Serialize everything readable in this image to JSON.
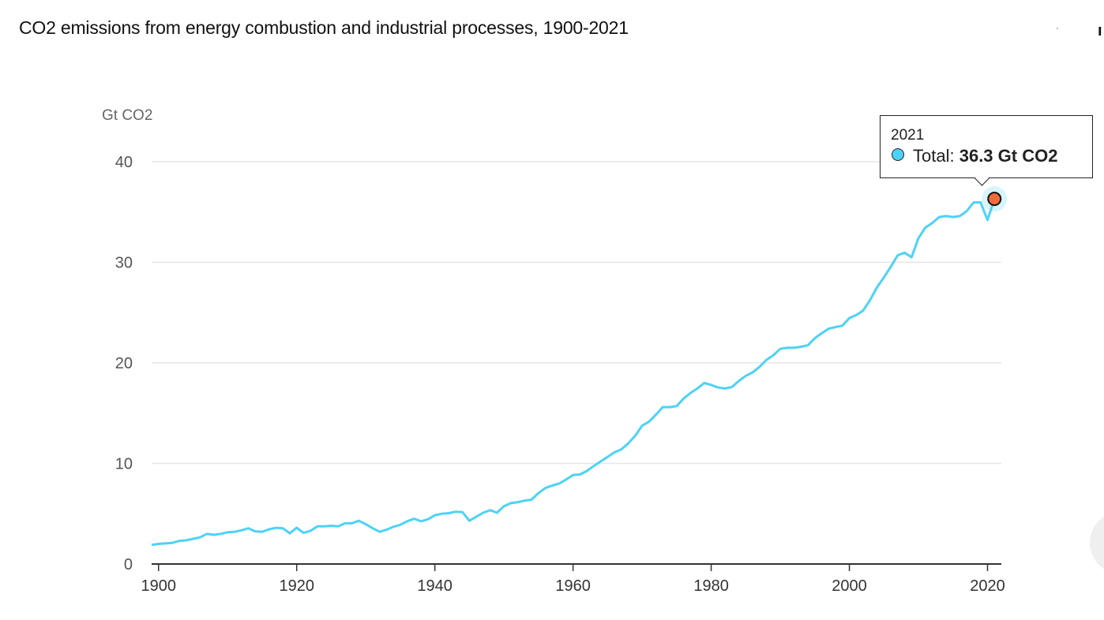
{
  "page": {
    "title": "CO2 emissions from energy combustion and industrial processes, 1900-2021"
  },
  "colors": {
    "line": "#4dd2f7",
    "highlight_point": "#f06a3c",
    "grid": "#e6e6e6",
    "axis": "#333333",
    "tick_text": "#555555"
  },
  "tooltip": {
    "year": "2021",
    "series_label": "Total:",
    "value_text": "36.3 Gt CO2"
  },
  "chart_data": {
    "type": "line",
    "title": "CO2 emissions from energy combustion and industrial processes, 1900-2021",
    "xlabel": "",
    "ylabel": "Gt CO2",
    "xlim": [
      1899,
      2022
    ],
    "ylim": [
      0,
      40
    ],
    "x_ticks": [
      1900,
      1920,
      1940,
      1960,
      1980,
      2000,
      2020
    ],
    "y_ticks": [
      0,
      10,
      20,
      30,
      40
    ],
    "grid": "horizontal",
    "highlight": {
      "x": 2021,
      "y": 36.3
    },
    "series": [
      {
        "name": "Total",
        "x": [
          1899,
          1900,
          1901,
          1902,
          1903,
          1904,
          1905,
          1906,
          1907,
          1908,
          1909,
          1910,
          1911,
          1912,
          1913,
          1914,
          1915,
          1916,
          1917,
          1918,
          1919,
          1920,
          1921,
          1922,
          1923,
          1924,
          1925,
          1926,
          1927,
          1928,
          1929,
          1930,
          1931,
          1932,
          1933,
          1934,
          1935,
          1936,
          1937,
          1938,
          1939,
          1940,
          1941,
          1942,
          1943,
          1944,
          1945,
          1946,
          1947,
          1948,
          1949,
          1950,
          1951,
          1952,
          1953,
          1954,
          1955,
          1956,
          1957,
          1958,
          1959,
          1960,
          1961,
          1962,
          1963,
          1964,
          1965,
          1966,
          1967,
          1968,
          1969,
          1970,
          1971,
          1972,
          1973,
          1974,
          1975,
          1976,
          1977,
          1978,
          1979,
          1980,
          1981,
          1982,
          1983,
          1984,
          1985,
          1986,
          1987,
          1988,
          1989,
          1990,
          1991,
          1992,
          1993,
          1994,
          1995,
          1996,
          1997,
          1998,
          1999,
          2000,
          2001,
          2002,
          2003,
          2004,
          2005,
          2006,
          2007,
          2008,
          2009,
          2010,
          2011,
          2012,
          2013,
          2014,
          2015,
          2016,
          2017,
          2018,
          2019,
          2020,
          2021
        ],
        "y": [
          1.9,
          2.0,
          2.05,
          2.1,
          2.3,
          2.35,
          2.5,
          2.65,
          3.0,
          2.9,
          3.0,
          3.15,
          3.2,
          3.35,
          3.55,
          3.25,
          3.2,
          3.45,
          3.6,
          3.55,
          3.05,
          3.6,
          3.1,
          3.3,
          3.75,
          3.75,
          3.8,
          3.75,
          4.05,
          4.05,
          4.3,
          3.95,
          3.55,
          3.2,
          3.4,
          3.7,
          3.9,
          4.25,
          4.5,
          4.25,
          4.45,
          4.85,
          5.0,
          5.05,
          5.2,
          5.15,
          4.3,
          4.7,
          5.1,
          5.35,
          5.1,
          5.75,
          6.05,
          6.15,
          6.3,
          6.4,
          7.05,
          7.55,
          7.8,
          8.0,
          8.4,
          8.85,
          8.9,
          9.25,
          9.75,
          10.2,
          10.65,
          11.1,
          11.4,
          12.0,
          12.75,
          13.75,
          14.15,
          14.85,
          15.6,
          15.6,
          15.7,
          16.45,
          17.0,
          17.45,
          18.0,
          17.8,
          17.55,
          17.45,
          17.6,
          18.2,
          18.7,
          19.05,
          19.6,
          20.3,
          20.75,
          21.4,
          21.5,
          21.5,
          21.6,
          21.75,
          22.45,
          22.95,
          23.4,
          23.55,
          23.7,
          24.45,
          24.75,
          25.2,
          26.25,
          27.5,
          28.5,
          29.55,
          30.7,
          30.95,
          30.5,
          32.4,
          33.45,
          33.9,
          34.5,
          34.6,
          34.5,
          34.6,
          35.1,
          35.95,
          35.95,
          34.2,
          36.3
        ]
      }
    ]
  }
}
